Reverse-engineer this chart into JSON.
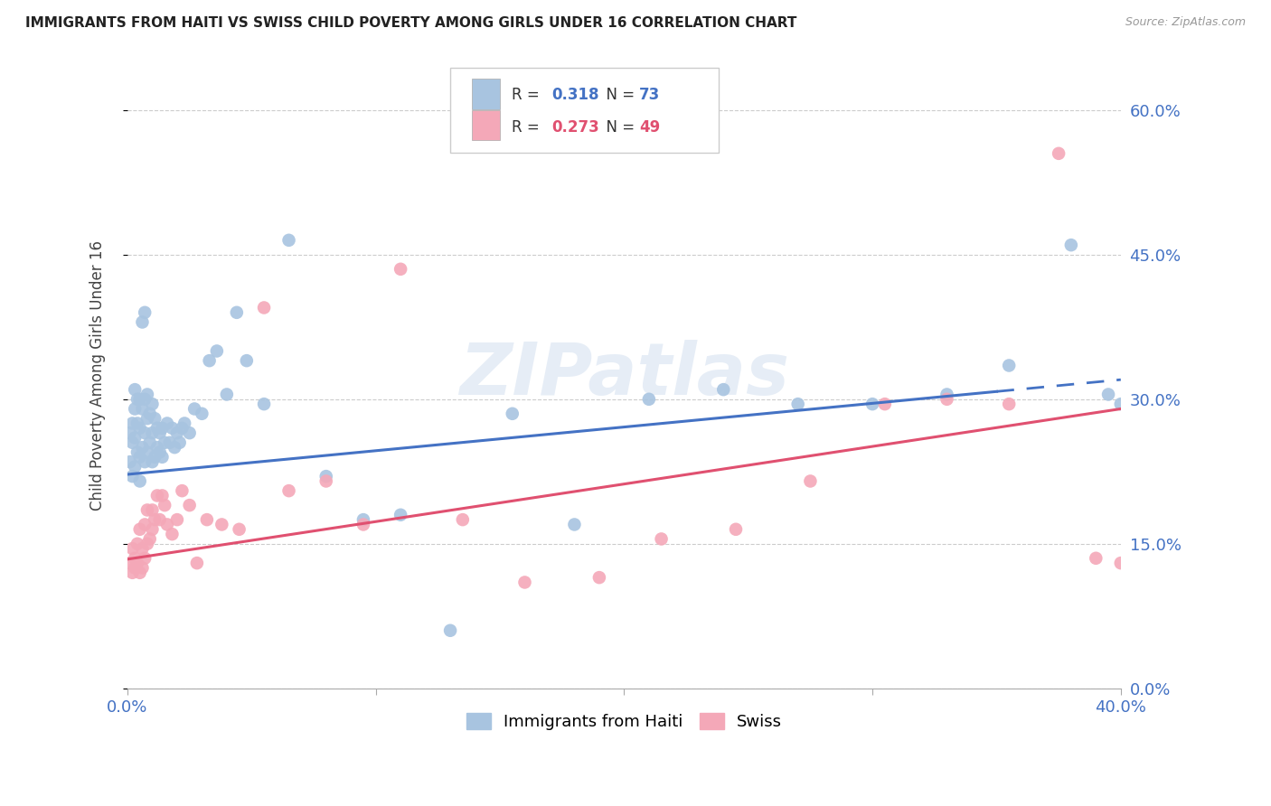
{
  "title": "IMMIGRANTS FROM HAITI VS SWISS CHILD POVERTY AMONG GIRLS UNDER 16 CORRELATION CHART",
  "source": "Source: ZipAtlas.com",
  "ylabel": "Child Poverty Among Girls Under 16",
  "xmin": 0.0,
  "xmax": 0.4,
  "ymin": 0.0,
  "ymax": 0.65,
  "yticks": [
    0.0,
    0.15,
    0.3,
    0.45,
    0.6
  ],
  "haiti_R": 0.318,
  "haiti_N": 73,
  "swiss_R": 0.273,
  "swiss_N": 49,
  "haiti_color": "#a8c4e0",
  "swiss_color": "#f4a8b8",
  "haiti_line_color": "#4472c4",
  "swiss_line_color": "#e05070",
  "watermark": "ZIPatlas",
  "legend_text_color": "#4472c4",
  "haiti_scatter_x": [
    0.001,
    0.001,
    0.002,
    0.002,
    0.002,
    0.003,
    0.003,
    0.003,
    0.003,
    0.004,
    0.004,
    0.004,
    0.005,
    0.005,
    0.005,
    0.005,
    0.006,
    0.006,
    0.006,
    0.007,
    0.007,
    0.007,
    0.007,
    0.008,
    0.008,
    0.008,
    0.009,
    0.009,
    0.01,
    0.01,
    0.01,
    0.011,
    0.011,
    0.012,
    0.012,
    0.013,
    0.013,
    0.014,
    0.014,
    0.015,
    0.016,
    0.017,
    0.018,
    0.019,
    0.02,
    0.021,
    0.022,
    0.023,
    0.025,
    0.027,
    0.03,
    0.033,
    0.036,
    0.04,
    0.044,
    0.048,
    0.055,
    0.065,
    0.08,
    0.095,
    0.11,
    0.13,
    0.155,
    0.18,
    0.21,
    0.24,
    0.27,
    0.3,
    0.33,
    0.355,
    0.38,
    0.395,
    0.4
  ],
  "haiti_scatter_y": [
    0.235,
    0.265,
    0.22,
    0.255,
    0.275,
    0.23,
    0.26,
    0.29,
    0.31,
    0.245,
    0.275,
    0.3,
    0.215,
    0.24,
    0.27,
    0.3,
    0.25,
    0.29,
    0.38,
    0.235,
    0.265,
    0.3,
    0.39,
    0.245,
    0.28,
    0.305,
    0.255,
    0.285,
    0.235,
    0.265,
    0.295,
    0.24,
    0.28,
    0.25,
    0.27,
    0.245,
    0.265,
    0.24,
    0.27,
    0.255,
    0.275,
    0.255,
    0.27,
    0.25,
    0.265,
    0.255,
    0.27,
    0.275,
    0.265,
    0.29,
    0.285,
    0.34,
    0.35,
    0.305,
    0.39,
    0.34,
    0.295,
    0.465,
    0.22,
    0.175,
    0.18,
    0.06,
    0.285,
    0.17,
    0.3,
    0.31,
    0.295,
    0.295,
    0.305,
    0.335,
    0.46,
    0.305,
    0.295
  ],
  "swiss_scatter_x": [
    0.001,
    0.002,
    0.002,
    0.003,
    0.003,
    0.004,
    0.004,
    0.005,
    0.005,
    0.006,
    0.006,
    0.007,
    0.007,
    0.008,
    0.008,
    0.009,
    0.01,
    0.01,
    0.011,
    0.012,
    0.013,
    0.014,
    0.015,
    0.016,
    0.018,
    0.02,
    0.022,
    0.025,
    0.028,
    0.032,
    0.038,
    0.045,
    0.055,
    0.065,
    0.08,
    0.095,
    0.11,
    0.135,
    0.16,
    0.19,
    0.215,
    0.245,
    0.275,
    0.305,
    0.33,
    0.355,
    0.375,
    0.39,
    0.4
  ],
  "swiss_scatter_y": [
    0.13,
    0.12,
    0.145,
    0.125,
    0.135,
    0.13,
    0.15,
    0.12,
    0.165,
    0.125,
    0.145,
    0.135,
    0.17,
    0.15,
    0.185,
    0.155,
    0.165,
    0.185,
    0.175,
    0.2,
    0.175,
    0.2,
    0.19,
    0.17,
    0.16,
    0.175,
    0.205,
    0.19,
    0.13,
    0.175,
    0.17,
    0.165,
    0.395,
    0.205,
    0.215,
    0.17,
    0.435,
    0.175,
    0.11,
    0.115,
    0.155,
    0.165,
    0.215,
    0.295,
    0.3,
    0.295,
    0.555,
    0.135,
    0.13
  ],
  "haiti_line_x0": 0.0,
  "haiti_line_x1": 0.35,
  "haiti_line_y0": 0.222,
  "haiti_line_y1": 0.308,
  "swiss_line_x0": 0.0,
  "swiss_line_x1": 0.4,
  "swiss_line_y0": 0.134,
  "swiss_line_y1": 0.29
}
